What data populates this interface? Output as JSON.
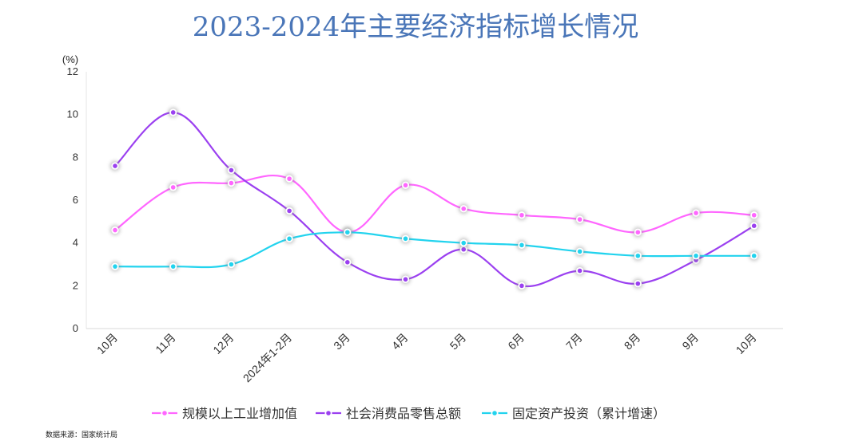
{
  "chart_data": {
    "type": "line",
    "title": "2023-2024年主要经济指标增长情况",
    "yunit": "(%)",
    "ylim": [
      0,
      12
    ],
    "yticks": [
      0,
      2,
      4,
      6,
      8,
      10,
      12
    ],
    "grid": false,
    "legend_position": "bottom",
    "categories": [
      "10月",
      "11月",
      "12月",
      "2024年1-2月",
      "3月",
      "4月",
      "5月",
      "6月",
      "7月",
      "8月",
      "9月",
      "10月"
    ],
    "series": [
      {
        "name": "规模以上工业增加值",
        "color": "#ff66ff",
        "values": [
          4.6,
          6.6,
          6.8,
          7.0,
          4.5,
          6.7,
          5.6,
          5.3,
          5.1,
          4.5,
          5.4,
          5.3
        ]
      },
      {
        "name": "社会消费品零售总额",
        "color": "#9b40f0",
        "values": [
          7.6,
          10.1,
          7.4,
          5.5,
          3.1,
          2.3,
          3.7,
          2.0,
          2.7,
          2.1,
          3.2,
          4.8
        ]
      },
      {
        "name": "固定资产投资（累计增速）",
        "color": "#22d3ee",
        "values": [
          2.9,
          2.9,
          3.0,
          4.2,
          4.5,
          4.2,
          4.0,
          3.9,
          3.6,
          3.4,
          3.4,
          3.4
        ]
      }
    ]
  },
  "source": "数据来源：国家统计局"
}
